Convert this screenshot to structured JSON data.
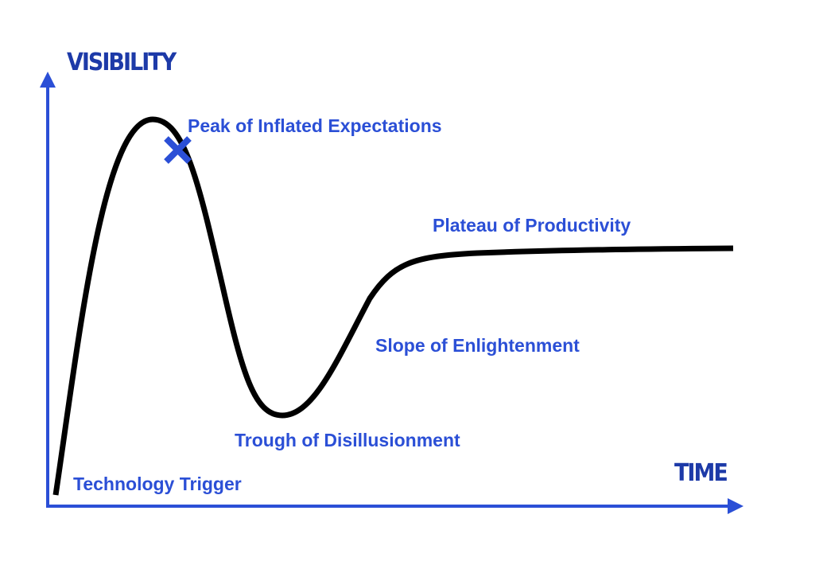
{
  "axes": {
    "y_label": "VISIBILITY",
    "x_label": "TIME"
  },
  "phases": [
    {
      "label": "Technology Trigger"
    },
    {
      "label": "Peak of Inflated Expectations"
    },
    {
      "label": "Trough of Disillusionment"
    },
    {
      "label": "Slope of Enlightenment"
    },
    {
      "label": "Plateau of Productivity"
    }
  ]
}
